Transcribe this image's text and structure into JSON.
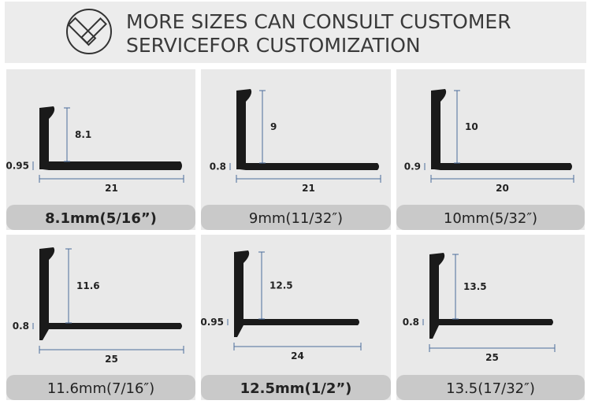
{
  "header": {
    "title_lines": [
      "MORE SIZES CAN CONSULT CUSTOMER",
      "SERVICEFOR CUSTOMIZATION"
    ]
  },
  "panels": [
    {
      "height": "8.1",
      "width": "21",
      "thickness": "0.95",
      "caption": "8.1mm(5/16”)"
    },
    {
      "height": "9",
      "width": "21",
      "thickness": "0.8",
      "caption": "9mm(11/32″)"
    },
    {
      "height": "10",
      "width": "20",
      "thickness": "0.9",
      "caption": "10mm(5/32″)"
    },
    {
      "height": "11.6",
      "width": "25",
      "thickness": "0.8",
      "caption": "11.6mm(7/16″)"
    },
    {
      "height": "12.5",
      "width": "24",
      "thickness": "0.95",
      "caption": "12.5mm(1/2”)"
    },
    {
      "height": "13.5",
      "width": "25",
      "thickness": "0.8",
      "caption": "13.5(17/32″)"
    }
  ]
}
